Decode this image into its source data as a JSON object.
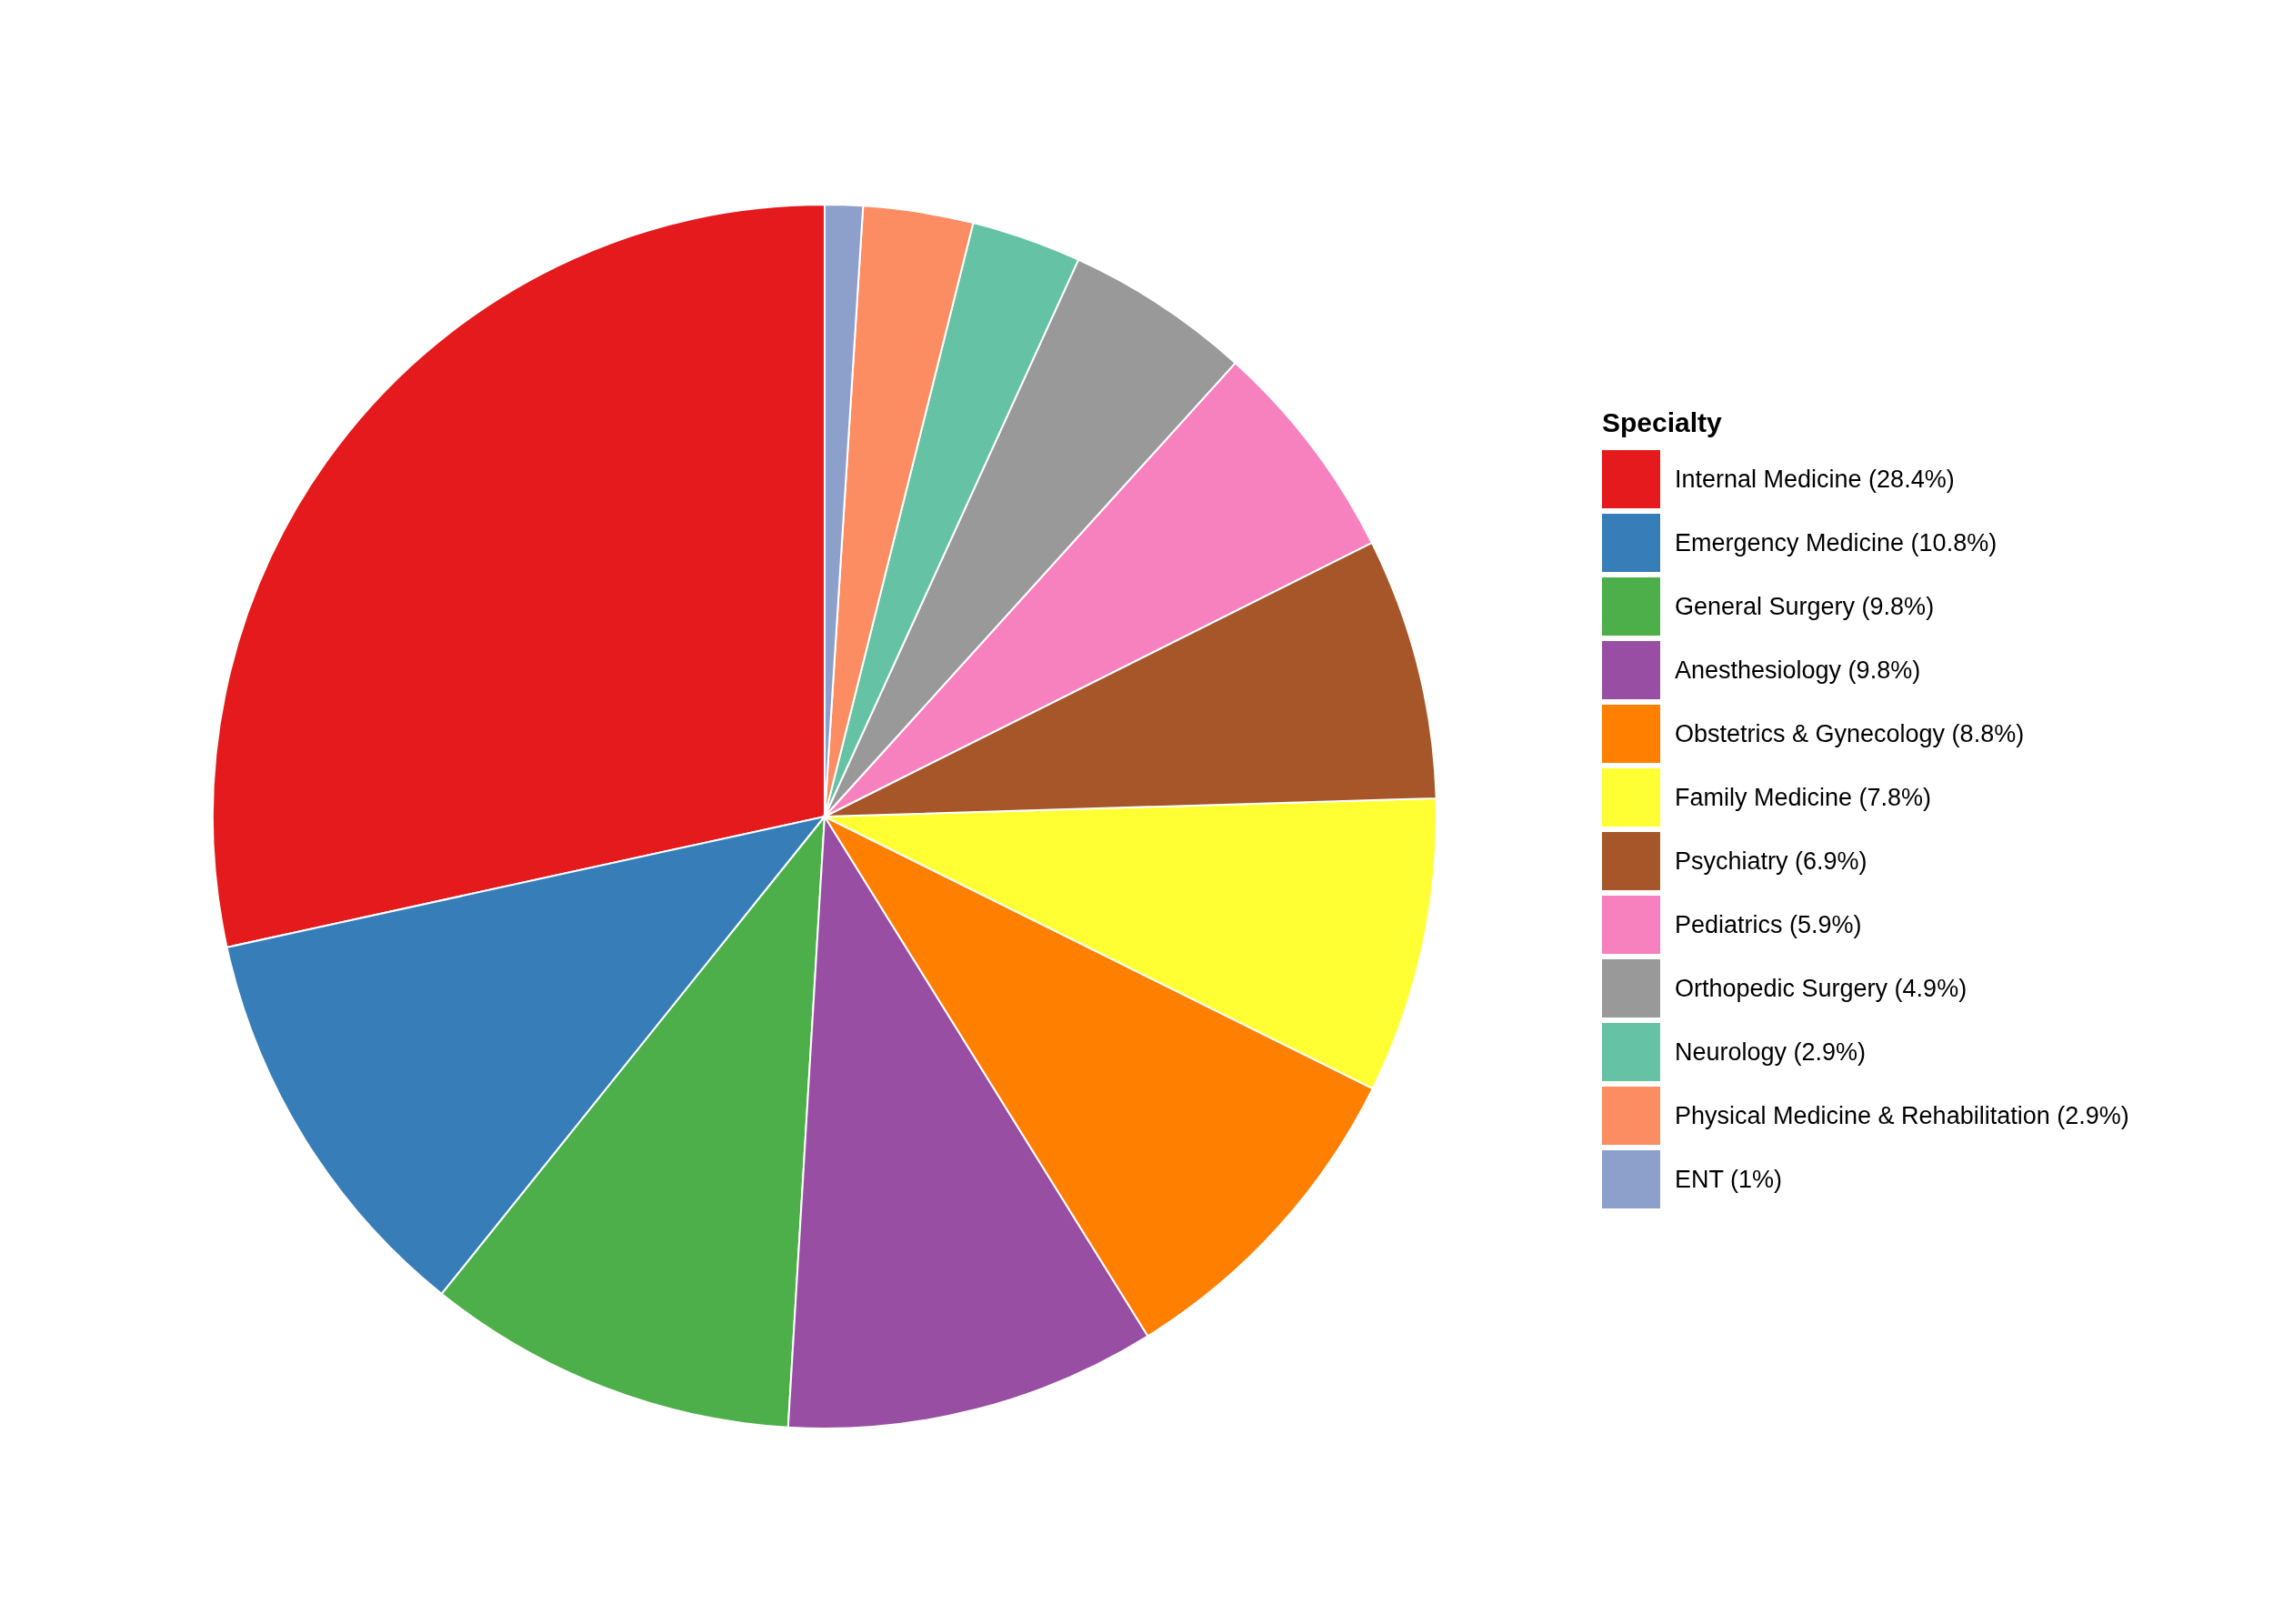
{
  "chart_data": {
    "type": "pie",
    "legend_title": "Specialty",
    "legend": "right",
    "categories": [
      "Internal Medicine (28.4%)",
      "Emergency Medicine (10.8%)",
      "General Surgery (9.8%)",
      "Anesthesiology (9.8%)",
      "Obstetrics & Gynecology (8.8%)",
      "Family Medicine (7.8%)",
      "Psychiatry (6.9%)",
      "Pediatrics (5.9%)",
      "Orthopedic Surgery (4.9%)",
      "Neurology (2.9%)",
      "Physical Medicine & Rehabilitation (2.9%)",
      "ENT (1%)"
    ],
    "values": [
      28.4,
      10.8,
      9.8,
      9.8,
      8.8,
      7.8,
      6.9,
      5.9,
      4.9,
      2.9,
      2.9,
      1
    ],
    "colors": [
      "#e41a1c",
      "#377eb8",
      "#4daf4a",
      "#984ea3",
      "#ff7f00",
      "#ffff33",
      "#a65628",
      "#f781bf",
      "#999999",
      "#66c2a5",
      "#fc8d62",
      "#8da0cb"
    ]
  }
}
